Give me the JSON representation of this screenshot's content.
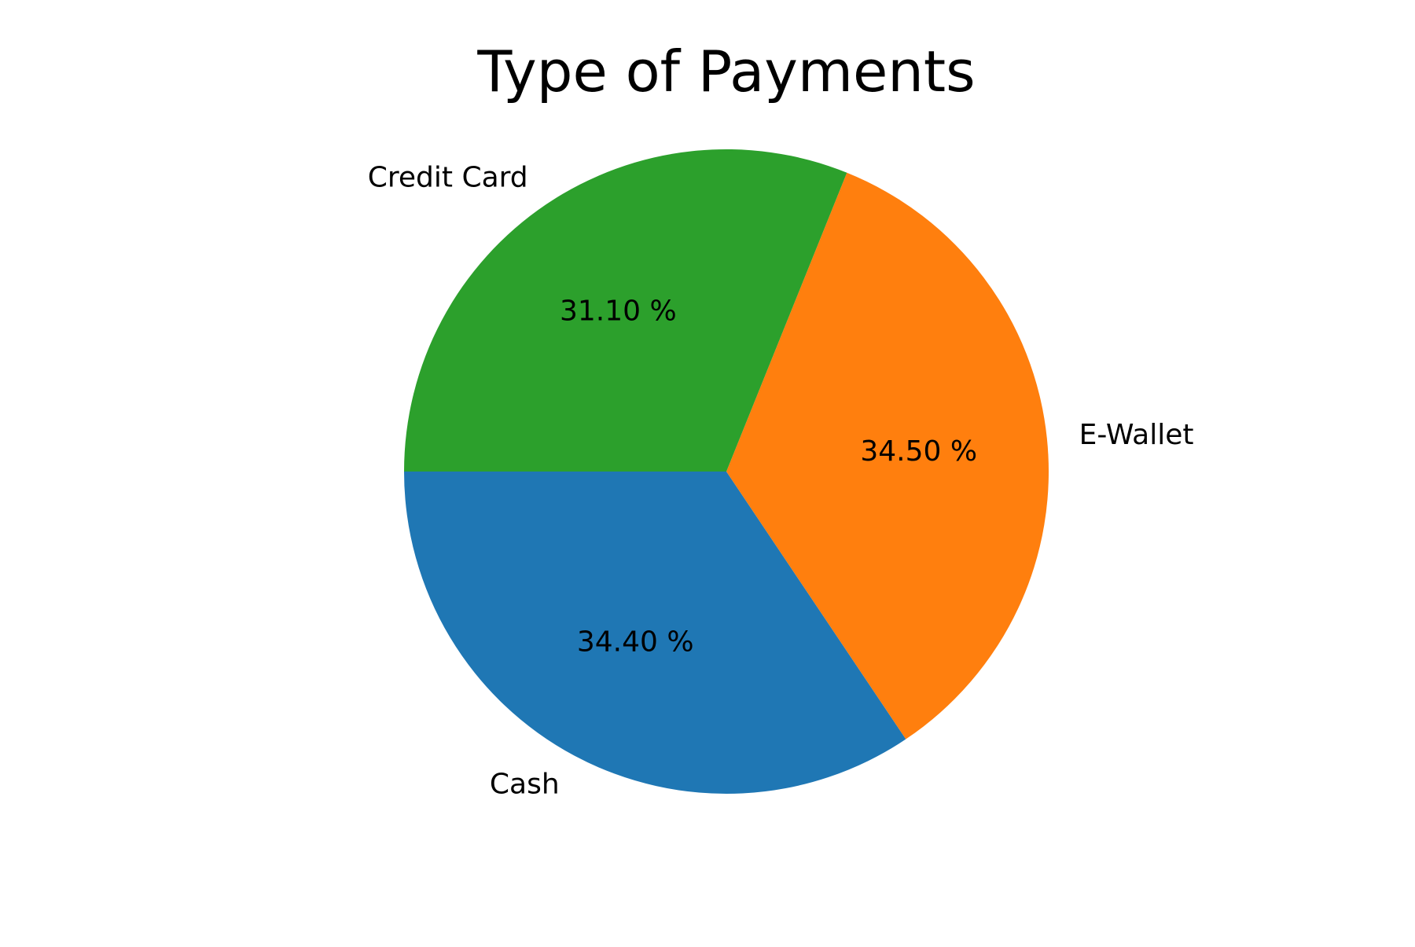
{
  "chart_data": {
    "type": "pie",
    "title": "Type of Payments",
    "slices": [
      {
        "label": "Cash",
        "value": 34.4,
        "pct_text": "34.40 %",
        "color": "#1f77b4"
      },
      {
        "label": "E-Wallet",
        "value": 34.5,
        "pct_text": "34.50 %",
        "color": "#ff7f0e"
      },
      {
        "label": "Credit Card",
        "value": 31.1,
        "pct_text": "31.10 %",
        "color": "#2ca02c"
      }
    ],
    "start_angle_deg": 180,
    "direction": "counterclockwise",
    "legend": "none"
  }
}
